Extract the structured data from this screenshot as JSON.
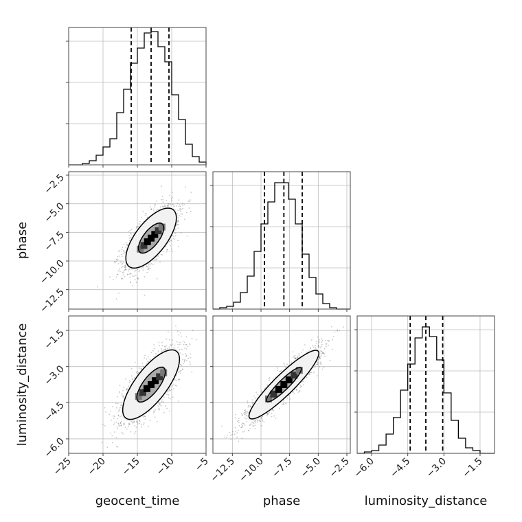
{
  "chart_data": {
    "type": "corner",
    "parameters": [
      "geocent_time",
      "phase",
      "luminosity_distance"
    ],
    "axis_labels": {
      "x": [
        "geocent_time",
        "phase",
        "luminosity_distance"
      ],
      "y": [
        "phase",
        "luminosity_distance"
      ]
    },
    "ranges": {
      "geocent_time": [
        -25,
        -5
      ],
      "phase": [
        -14.2,
        -2.2
      ],
      "luminosity_distance": [
        -6.6,
        -0.9
      ]
    },
    "ticks": {
      "geocent_time": {
        "values": [
          -25,
          -20,
          -15,
          -10,
          -5
        ],
        "labels": [
          "−25",
          "−20",
          "−15",
          "−10",
          "−5"
        ]
      },
      "phase_x": {
        "values": [
          -12.5,
          -10.0,
          -7.5,
          -5.0,
          -2.5
        ],
        "labels": [
          "−12.5",
          "−10.0",
          "−7.5",
          "−5.0",
          "−2.5"
        ]
      },
      "phase_y": {
        "values": [
          -12.5,
          -10.0,
          -7.5,
          -5.0,
          -2.5
        ],
        "labels": [
          "−12.5",
          "−10.0",
          "−7.5",
          "−5.0",
          "−2.5"
        ]
      },
      "luminosity_distance": {
        "values": [
          -6.0,
          -4.5,
          -3.0,
          -1.5
        ],
        "labels": [
          "−6.0",
          "−4.5",
          "−3.0",
          "−1.5"
        ]
      }
    },
    "histograms": [
      {
        "param": "geocent_time",
        "bin_edges": [
          -25,
          -24,
          -23,
          -22,
          -21,
          -20,
          -19,
          -18,
          -17,
          -16,
          -15,
          -14,
          -13,
          -12,
          -11,
          -10,
          -9,
          -8,
          -7,
          -6,
          -5
        ],
        "counts": [
          0,
          0,
          1,
          3,
          7,
          13,
          19,
          38,
          55,
          74,
          85,
          96,
          97,
          86,
          75,
          51,
          33,
          15,
          6,
          2,
          0
        ],
        "quantiles": [
          -15.9,
          -13.0,
          -10.4
        ],
        "ymax": 100
      },
      {
        "param": "phase",
        "bin_edges": [
          -14.2,
          -13.6,
          -13.0,
          -12.4,
          -11.8,
          -11.2,
          -10.6,
          -10.0,
          -9.4,
          -8.8,
          -8.2,
          -7.6,
          -7.0,
          -6.4,
          -5.8,
          -5.2,
          -4.6,
          -4.0,
          -3.4,
          -2.8,
          -2.2
        ],
        "counts": [
          0,
          1,
          2,
          5,
          12,
          24,
          42,
          62,
          78,
          92,
          92,
          80,
          62,
          40,
          23,
          11,
          4,
          1,
          0,
          0
        ],
        "quantiles": [
          -9.7,
          -8.0,
          -6.4
        ],
        "ymax": 100
      },
      {
        "param": "luminosity_distance",
        "bin_edges": [
          -6.6,
          -6.3,
          -6.0,
          -5.7,
          -5.4,
          -5.1,
          -4.8,
          -4.5,
          -4.2,
          -3.9,
          -3.6,
          -3.3,
          -3.0,
          -2.7,
          -2.4,
          -2.1,
          -1.8,
          -1.5,
          -1.2,
          -0.9
        ],
        "counts": [
          0,
          1,
          2,
          6,
          14,
          26,
          46,
          65,
          84,
          92,
          85,
          68,
          44,
          24,
          11,
          4,
          2,
          0,
          0
        ],
        "quantiles": [
          -4.4,
          -3.75,
          -3.05
        ],
        "ymax": 100
      }
    ],
    "joint": [
      {
        "x": "geocent_time",
        "y": "phase",
        "center": [
          -13.0,
          -8.0
        ],
        "major_slope": 0.61,
        "sd_major": 2.2,
        "sd_minor": 0.9,
        "contour_sigmas": [
          1,
          2
        ]
      },
      {
        "x": "geocent_time",
        "y": "luminosity_distance",
        "center": [
          -13.0,
          -3.75
        ],
        "major_slope": 0.27,
        "sd_major": 2.25,
        "sd_minor": 0.5,
        "contour_sigmas": [
          1,
          2
        ]
      },
      {
        "x": "phase",
        "y": "luminosity_distance",
        "center": [
          -8.0,
          -3.75
        ],
        "major_slope": 0.44,
        "sd_major": 1.75,
        "sd_minor": 0.28,
        "contour_sigmas": [
          1,
          2
        ]
      }
    ],
    "grid": true,
    "legend": "none"
  }
}
